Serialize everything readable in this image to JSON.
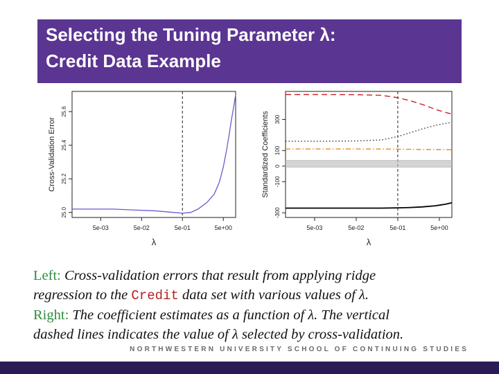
{
  "slide": {
    "title_line1": "Selecting the Tuning Parameter λ:",
    "title_line2": "Credit Data Example",
    "footer": "NORTHWESTERN UNIVERSITY SCHOOL OF CONTINUING STUDIES",
    "colors": {
      "title_bg": "#5b3592",
      "bottom_bar": "#2b1a56",
      "label_green": "#2e8b3a",
      "code_red": "#b22222"
    }
  },
  "caption": {
    "left_label": "Left:",
    "left_text_a": "Cross-validation errors that result from applying ridge",
    "left_text_b": "regression to the",
    "left_code": "Credit",
    "left_text_c": "data set with various values of λ.",
    "right_label": "Right:",
    "right_text_a": "The coefficient estimates as a function of λ. The vertical",
    "right_text_b": "dashed lines indicates the value of λ selected by cross-validation."
  },
  "chart_data": [
    {
      "type": "line",
      "xlabel": "λ",
      "ylabel": "Cross-Validation Error",
      "x_scale": "log",
      "x_ticks": [
        "5e-03",
        "5e-02",
        "5e-01",
        "5e+00"
      ],
      "y_ticks": [
        "25.0",
        "25.2",
        "25.4",
        "25.6"
      ],
      "xlim": [
        0.001,
        10
      ],
      "ylim": [
        24.97,
        25.72
      ],
      "x": [
        0.001,
        0.003,
        0.01,
        0.03,
        0.1,
        0.3,
        0.5,
        0.8,
        1.2,
        2,
        3,
        4,
        5,
        6,
        7,
        8,
        9,
        10
      ],
      "y": [
        25.02,
        25.02,
        25.02,
        25.015,
        25.01,
        25.0,
        24.995,
        25.0,
        25.02,
        25.06,
        25.11,
        25.18,
        25.27,
        25.37,
        25.47,
        25.56,
        25.63,
        25.7
      ],
      "line_color": "#6a5acd",
      "vline_x": 0.5
    },
    {
      "type": "line",
      "xlabel": "λ",
      "ylabel": "Standardized Coefficients",
      "x_scale": "log",
      "x_ticks": [
        "5e-03",
        "5e-02",
        "5e-01",
        "5e+00"
      ],
      "y_ticks": [
        "-300",
        "-100",
        "0",
        "100",
        "300"
      ],
      "xlim": [
        0.001,
        10
      ],
      "ylim": [
        -330,
        480
      ],
      "x": [
        0.001,
        0.01,
        0.05,
        0.2,
        0.5,
        1,
        2,
        4,
        7,
        10
      ],
      "series": [
        {
          "color": "#cc2222",
          "dash": "dashed",
          "values": [
            460,
            460,
            459,
            455,
            440,
            420,
            395,
            365,
            345,
            335
          ]
        },
        {
          "color": "#333333",
          "dash": "dotted",
          "values": [
            160,
            160,
            162,
            168,
            190,
            215,
            240,
            262,
            275,
            280
          ]
        },
        {
          "color": "#e08a1e",
          "dash": "dashdot",
          "values": [
            110,
            110,
            110,
            110,
            109,
            108,
            107,
            106,
            106,
            105
          ]
        },
        {
          "color": "#bbbbbb",
          "dash": "solid",
          "values": [
            35,
            35,
            35,
            35,
            35,
            35,
            35,
            35,
            35,
            35
          ]
        },
        {
          "color": "#bbbbbb",
          "dash": "solid",
          "values": [
            25,
            25,
            25,
            25,
            25,
            25,
            25,
            25,
            25,
            25
          ]
        },
        {
          "color": "#bbbbbb",
          "dash": "solid",
          "values": [
            15,
            15,
            15,
            15,
            15,
            15,
            15,
            15,
            15,
            15
          ]
        },
        {
          "color": "#bbbbbb",
          "dash": "solid",
          "values": [
            5,
            5,
            5,
            5,
            5,
            5,
            5,
            5,
            5,
            5
          ]
        },
        {
          "color": "#bbbbbb",
          "dash": "solid",
          "values": [
            -5,
            -5,
            -5,
            -5,
            -5,
            -5,
            -5,
            -5,
            -5,
            -5
          ]
        },
        {
          "color": "#000000",
          "dash": "solid",
          "values": [
            -270,
            -270,
            -270,
            -270,
            -268,
            -266,
            -262,
            -255,
            -245,
            -235
          ]
        }
      ],
      "vline_x": 0.5
    }
  ]
}
